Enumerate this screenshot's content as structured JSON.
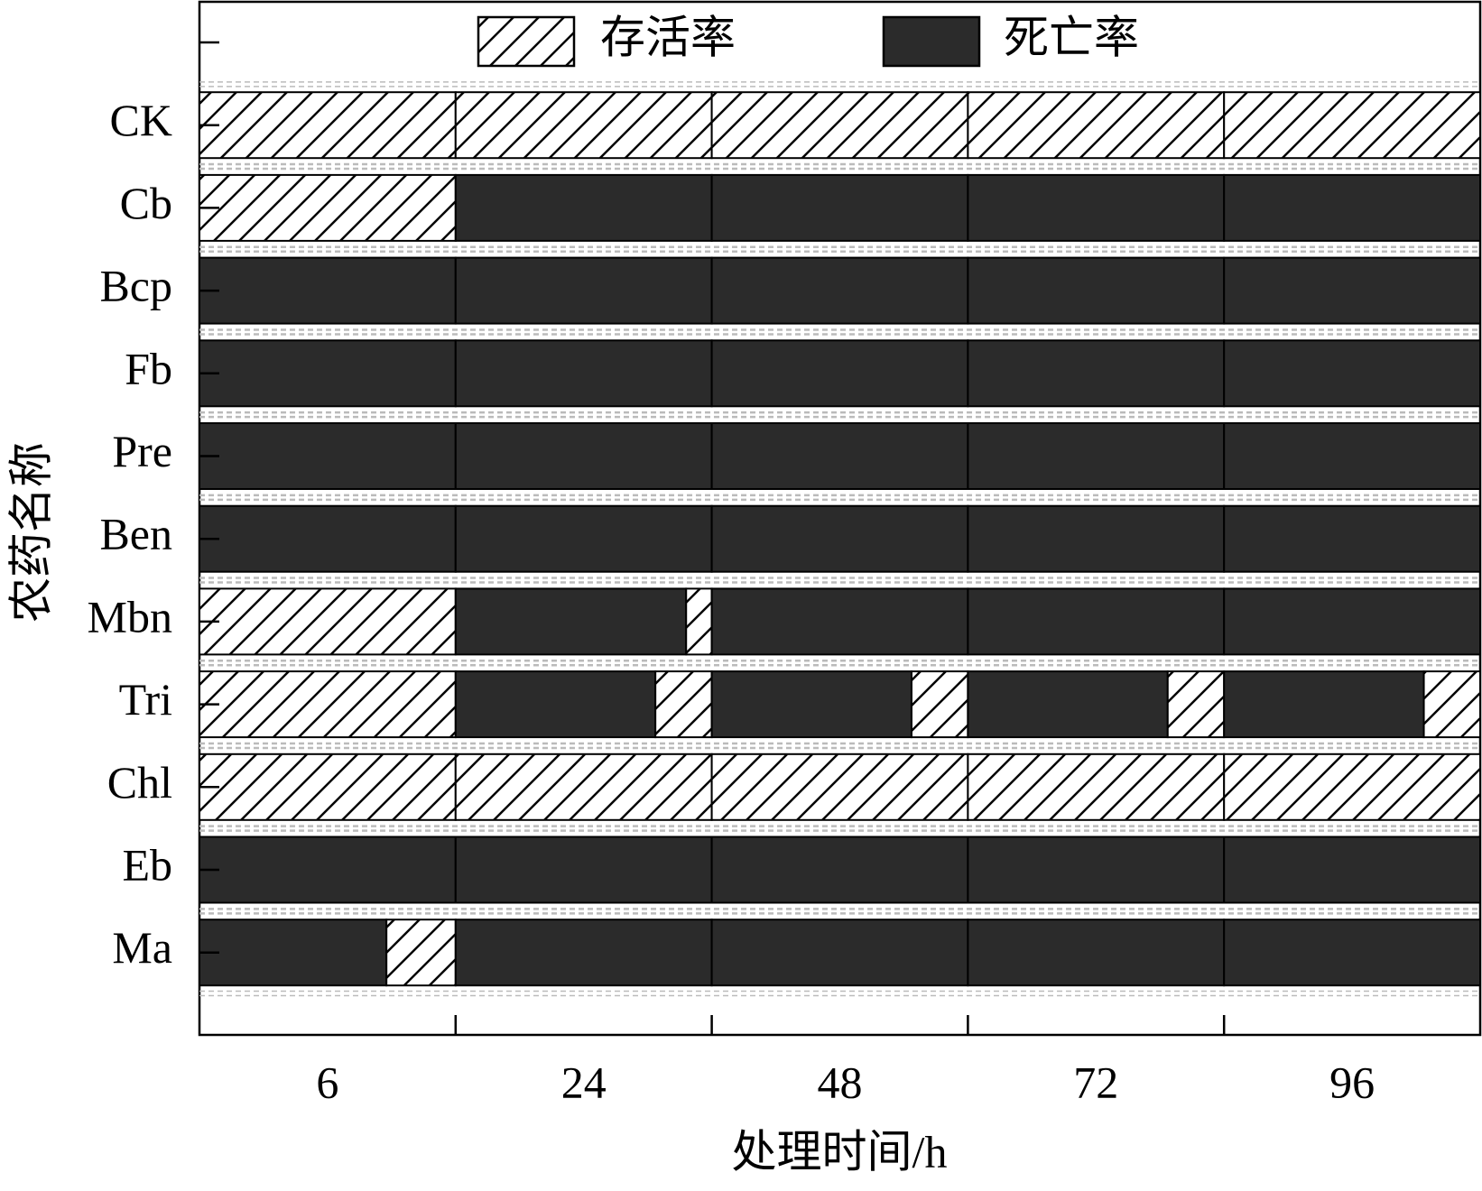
{
  "chart_data": {
    "type": "bar",
    "orientation": "horizontal",
    "stacked": true,
    "x_label": "处理时间/h",
    "y_label": "农药名称",
    "categories": [
      "CK",
      "Cb",
      "Bcp",
      "Fb",
      "Pre",
      "Ben",
      "Mbn",
      "Tri",
      "Chl",
      "Eb",
      "Ma"
    ],
    "groups": [
      "6",
      "24",
      "48",
      "72",
      "96"
    ],
    "xlim": [
      0,
      100
    ],
    "series": [
      {
        "name": "死亡率",
        "color": "#2b2b2b",
        "values": [
          [
            0,
            0,
            100,
            100,
            100,
            100,
            0,
            0,
            0,
            100,
            73
          ],
          [
            0,
            100,
            100,
            100,
            100,
            100,
            90,
            78,
            0,
            100,
            100
          ],
          [
            0,
            100,
            100,
            100,
            100,
            100,
            100,
            78,
            0,
            100,
            100
          ],
          [
            0,
            100,
            100,
            100,
            100,
            100,
            100,
            78,
            0,
            100,
            100
          ],
          [
            0,
            100,
            100,
            100,
            100,
            100,
            100,
            78,
            0,
            100,
            100
          ]
        ]
      },
      {
        "name": "存活率",
        "color": "hatch",
        "values": [
          [
            100,
            100,
            0,
            0,
            0,
            0,
            100,
            100,
            100,
            0,
            27
          ],
          [
            100,
            0,
            0,
            0,
            0,
            0,
            10,
            22,
            100,
            0,
            0
          ],
          [
            100,
            0,
            0,
            0,
            0,
            0,
            0,
            22,
            100,
            0,
            0
          ],
          [
            100,
            0,
            0,
            0,
            0,
            0,
            0,
            22,
            100,
            0,
            0
          ],
          [
            100,
            0,
            0,
            0,
            0,
            0,
            0,
            22,
            100,
            0,
            0
          ]
        ]
      }
    ]
  }
}
